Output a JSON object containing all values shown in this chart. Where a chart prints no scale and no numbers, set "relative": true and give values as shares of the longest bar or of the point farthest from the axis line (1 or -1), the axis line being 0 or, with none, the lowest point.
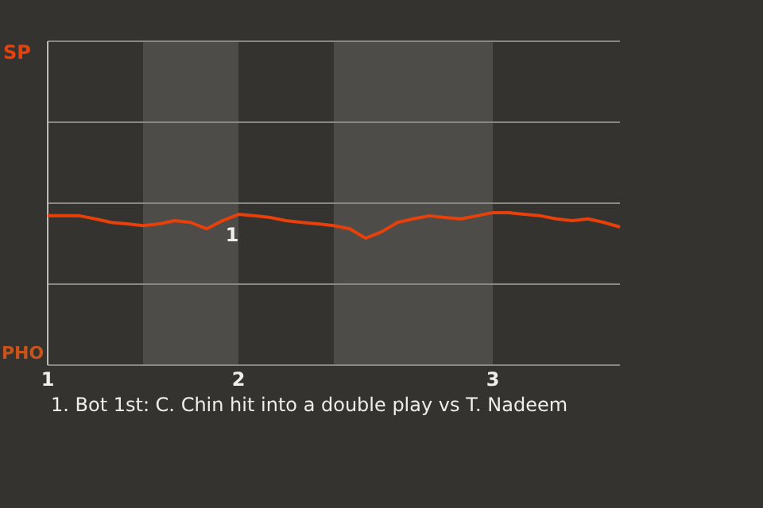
{
  "chart_data": {
    "type": "line",
    "relative": true,
    "categories": [
      "1",
      null,
      null,
      null,
      null,
      null,
      null,
      null,
      null,
      null,
      null,
      null,
      "2",
      null,
      null,
      null,
      null,
      null,
      null,
      null,
      null,
      null,
      null,
      null,
      null,
      null,
      null,
      null,
      "3",
      null,
      null,
      null,
      null,
      null,
      null,
      null,
      null
    ],
    "series": [
      {
        "color": "#e8400a",
        "values": [
          -0.36,
          -0.36,
          -0.36,
          -0.45,
          -0.55,
          -0.59,
          -0.64,
          -0.59,
          -0.5,
          -0.55,
          -0.73,
          -0.5,
          -0.32,
          -0.36,
          -0.41,
          -0.5,
          -0.55,
          -0.59,
          -0.64,
          -0.73,
          -1,
          -0.82,
          -0.55,
          -0.45,
          -0.36,
          -0.41,
          -0.45,
          -0.36,
          -0.27,
          -0.27,
          -0.32,
          -0.36,
          -0.45,
          -0.5,
          -0.45,
          -0.55,
          -0.68
        ]
      }
    ],
    "annotations": [
      "SP",
      "PHO",
      "1",
      "1. Bot 1st: C. Chin hit into a double play vs T. Nadeem"
    ]
  }
}
